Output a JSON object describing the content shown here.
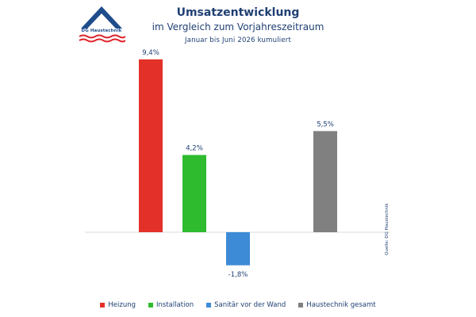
{
  "logo": {
    "text": "DG Haustechnik",
    "color": "#1f4d8c",
    "wave_color": "#e0242b"
  },
  "chart_data": {
    "type": "bar",
    "title": "Umsatzentwicklung",
    "subtitle": "im Vergleich zum Vorjahreszeitraum",
    "note": "Januar bis Juni 2026 kumuliert",
    "categories": [
      "Heizung",
      "Installation",
      "Sanitär vor der Wand",
      "Haustechnik gesamt"
    ],
    "values": [
      9.4,
      4.2,
      -1.8,
      5.5
    ],
    "data_labels": [
      "9,4%",
      "4,2%",
      "-1,8%",
      "5,5%"
    ],
    "colors": [
      "#e3312a",
      "#2ebc2e",
      "#3d8bd6",
      "#808080"
    ],
    "ylim": [
      -2.5,
      10
    ],
    "grid": false,
    "legend": "bottom",
    "source": "Quelle: DG Haustechnik"
  }
}
